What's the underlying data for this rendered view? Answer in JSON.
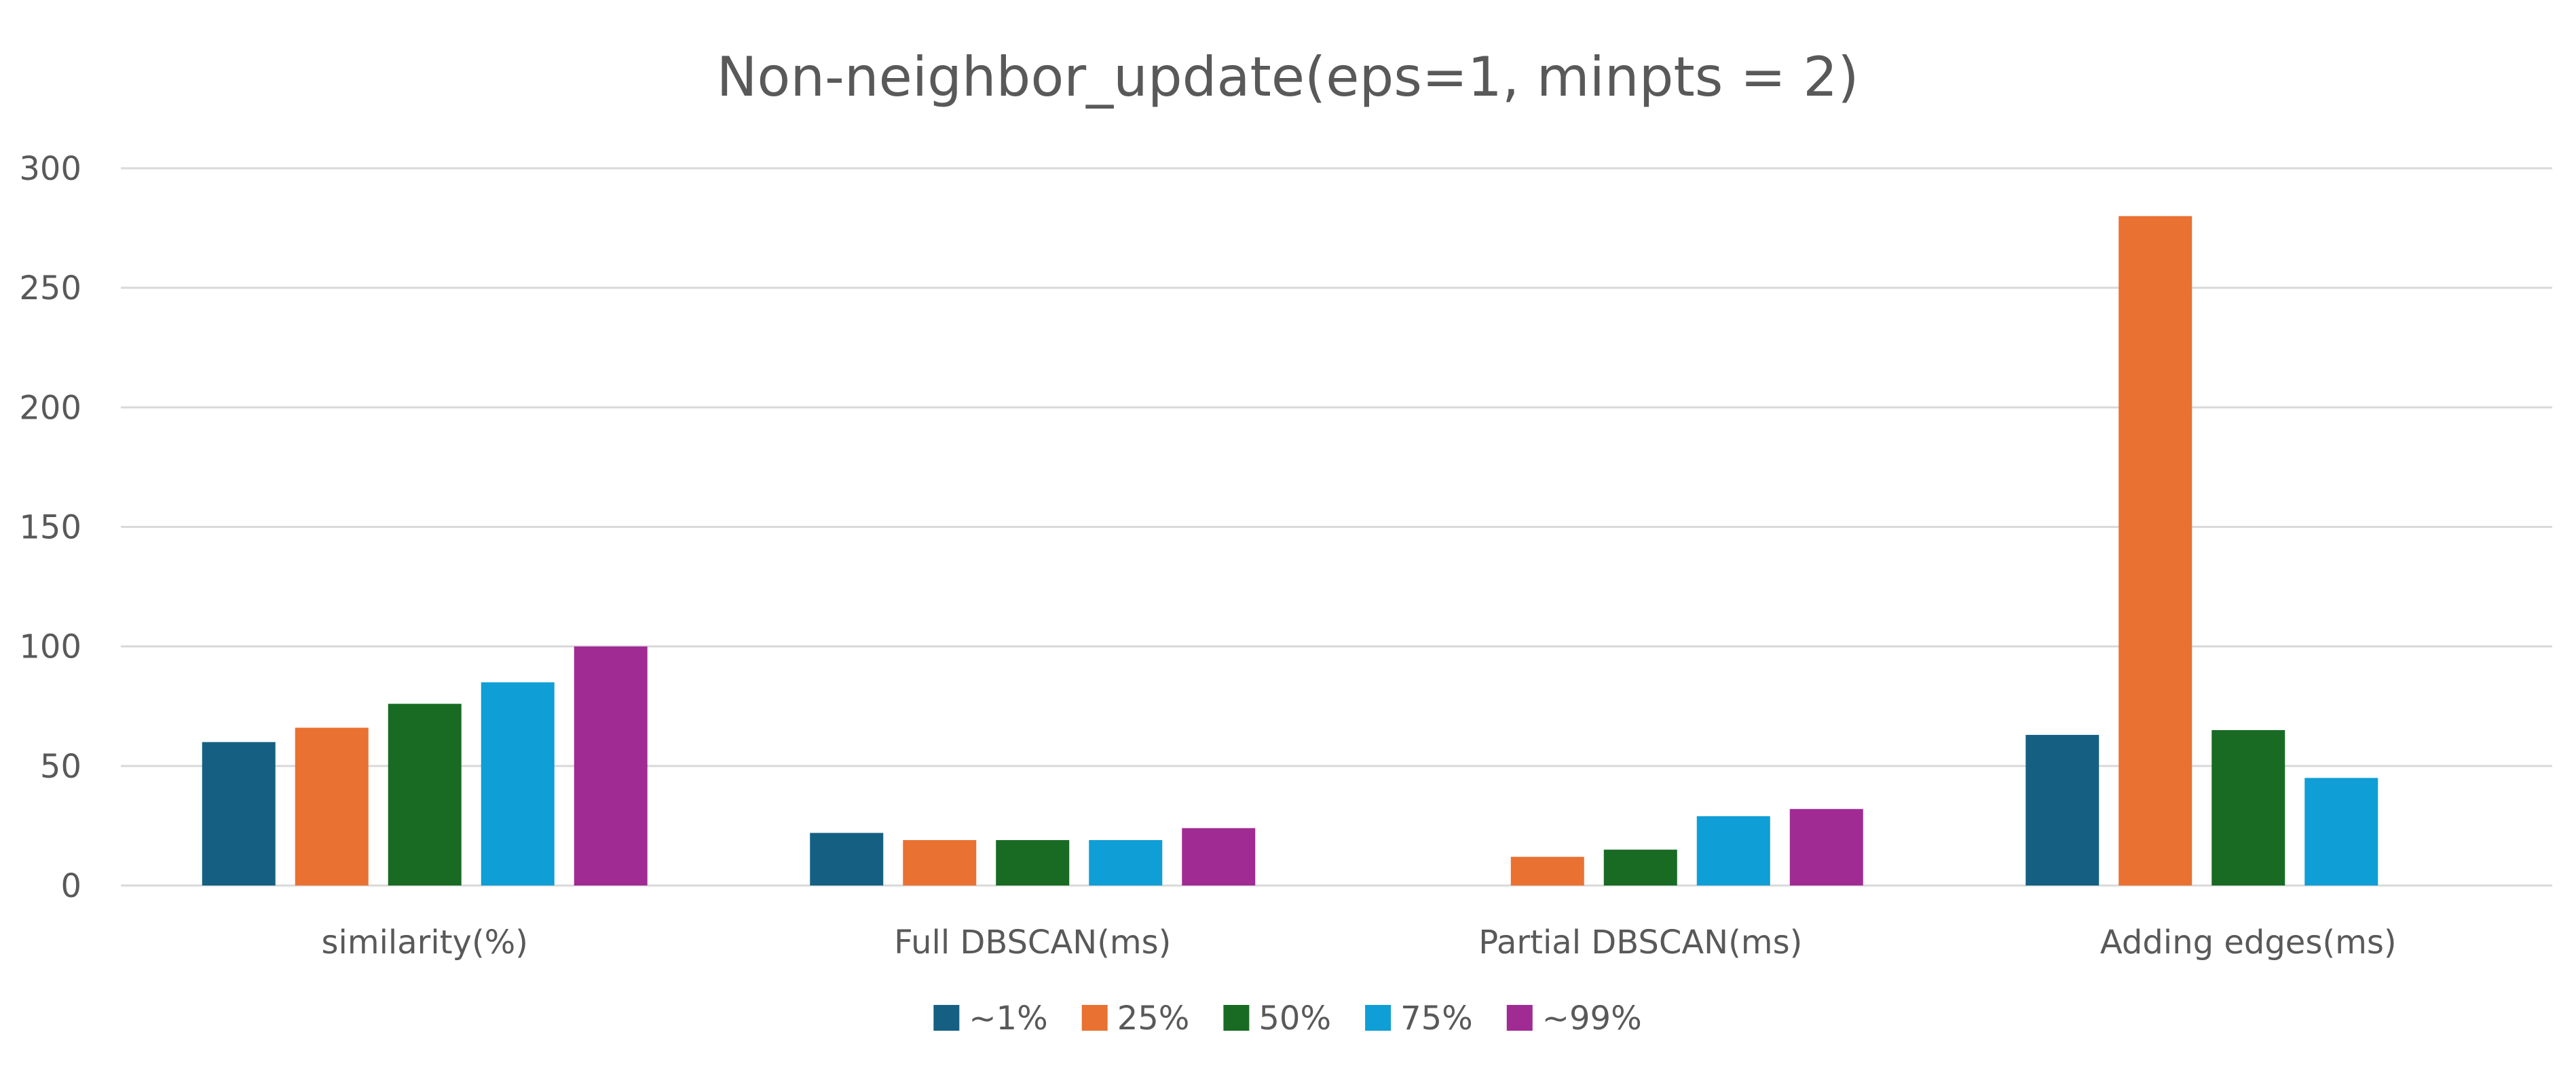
{
  "chart_data": {
    "type": "bar",
    "title": "Non-neighbor_update(eps=1, minpts = 2)",
    "xlabel": "",
    "ylabel": "",
    "categories": [
      "similarity(%)",
      "Full DBSCAN(ms)",
      "Partial DBSCAN(ms)",
      "Adding edges(ms)"
    ],
    "series": [
      {
        "name": "~1%",
        "color": "#156082",
        "values": [
          60,
          22,
          null,
          63
        ]
      },
      {
        "name": "25%",
        "color": "#E97132",
        "values": [
          66,
          19,
          12,
          280
        ]
      },
      {
        "name": "50%",
        "color": "#196B24",
        "values": [
          76,
          19,
          15,
          65
        ]
      },
      {
        "name": "75%",
        "color": "#0F9ED5",
        "values": [
          85,
          19,
          29,
          45
        ]
      },
      {
        "name": "~99%",
        "color": "#A02B93",
        "values": [
          100,
          24,
          32,
          null
        ]
      }
    ],
    "ylim": [
      0,
      300
    ],
    "yticks": [
      0,
      50,
      100,
      150,
      200,
      250,
      300
    ],
    "grid": true,
    "legend": "bottom-center"
  }
}
